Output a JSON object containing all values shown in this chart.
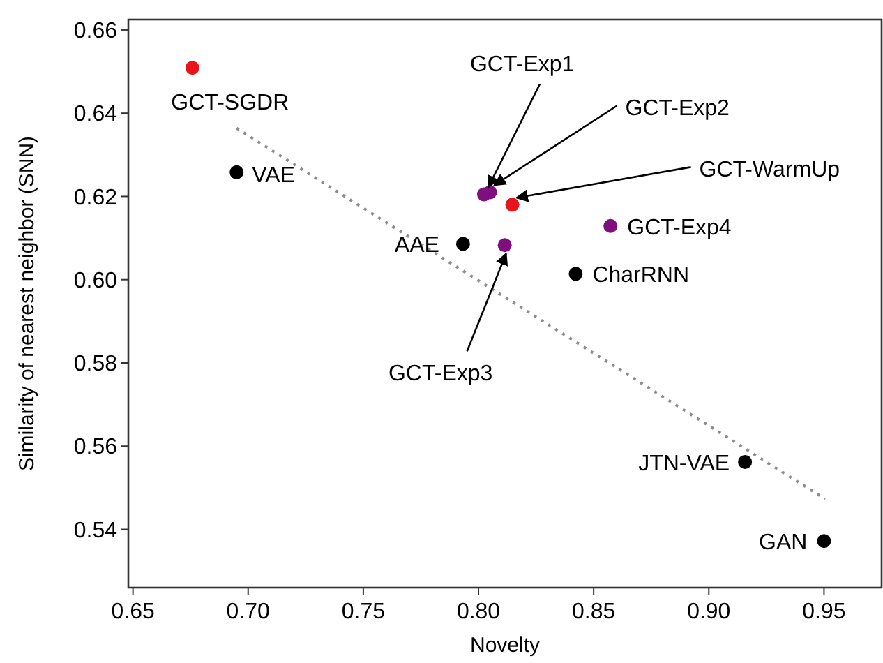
{
  "chart_data": {
    "type": "scatter",
    "xlabel": "Novelty",
    "ylabel": "Similarity of nearest neighbor (SNN)",
    "xlim": [
      0.648,
      0.975
    ],
    "ylim": [
      0.526,
      0.6625
    ],
    "xticks": [
      0.65,
      {
        "value": 0.7,
        "label": "0.70"
      },
      0.75,
      {
        "value": 0.8,
        "label": "0.80"
      },
      0.85,
      {
        "value": 0.9,
        "label": "0.90"
      },
      0.95
    ],
    "yticks": [
      0.54,
      0.56,
      0.58,
      {
        "value": 0.6,
        "label": "0.60"
      },
      0.62,
      0.64,
      0.66
    ],
    "grid": false,
    "marker": "circle",
    "series": [
      {
        "type": "line",
        "color": "#8c8c8c",
        "line_style": "dotted",
        "marker": "none",
        "x": [
          0.695,
          0.9505
        ],
        "values": [
          0.6364,
          0.5473
        ]
      },
      {
        "color": "#000000",
        "x": [
          0.695,
          0.7933,
          0.8422,
          0.9157,
          0.95
        ],
        "values": [
          0.6258,
          0.6086,
          0.6014,
          0.5562,
          0.5372
        ]
      },
      {
        "color": "#e8141c",
        "x": [
          0.6758,
          0.8147
        ],
        "values": [
          0.6509,
          0.618
        ]
      },
      {
        "color": "#7f0f7f",
        "x": [
          0.8024,
          0.805,
          0.8114,
          0.8573
        ],
        "values": [
          0.6205,
          0.621,
          0.6083,
          0.6129
        ]
      }
    ],
    "annotations": [
      {
        "text": "GCT-SGDR",
        "x": 0.6758,
        "y": 0.6509
      },
      {
        "text": "VAE",
        "x": 0.695,
        "y": 0.6258
      },
      {
        "text": "AAE",
        "x": 0.7933,
        "y": 0.6086
      },
      {
        "text": "GCT-Exp1",
        "x": 0.8024,
        "y": 0.6205
      },
      {
        "text": "GCT-Exp2",
        "x": 0.805,
        "y": 0.621
      },
      {
        "text": "GCT-WarmUp",
        "x": 0.8147,
        "y": 0.618
      },
      {
        "text": "GCT-Exp3",
        "x": 0.8114,
        "y": 0.6083
      },
      {
        "text": "GCT-Exp4",
        "x": 0.8573,
        "y": 0.6129
      },
      {
        "text": "CharRNN",
        "x": 0.8422,
        "y": 0.6014
      },
      {
        "text": "JTN-VAE",
        "x": 0.9157,
        "y": 0.5562
      },
      {
        "text": "GAN",
        "x": 0.95,
        "y": 0.5372
      }
    ]
  }
}
